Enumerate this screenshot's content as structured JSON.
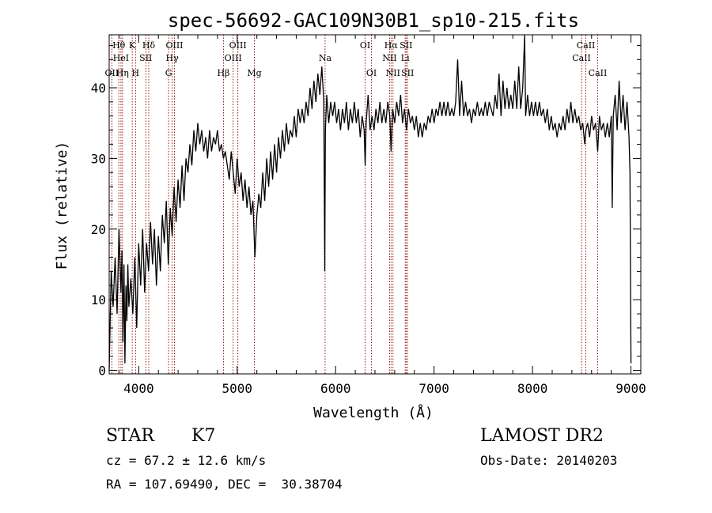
{
  "chart_data": {
    "type": "line",
    "title": "spec-56692-GAC109N30B1_sp10-215.fits",
    "xlabel": "Wavelength (Å)",
    "ylabel": "Flux (relative)",
    "xlim": [
      3700,
      9100
    ],
    "ylim": [
      -0.5,
      47.5
    ],
    "x_ticks": [
      4000,
      5000,
      6000,
      7000,
      8000,
      9000
    ],
    "y_ticks": [
      0,
      10,
      20,
      30,
      40
    ],
    "x_tick_labels": [
      "4000",
      "5000",
      "6000",
      "7000",
      "8000",
      "9000"
    ],
    "y_tick_labels": [
      "0",
      "10",
      "20",
      "30",
      "40"
    ],
    "grid": false,
    "series": [
      {
        "color": "#000000",
        "points": [
          [
            3700,
            0
          ],
          [
            3720,
            14
          ],
          [
            3740,
            9
          ],
          [
            3760,
            16
          ],
          [
            3780,
            8
          ],
          [
            3800,
            20
          ],
          [
            3820,
            11
          ],
          [
            3830,
            17
          ],
          [
            3840,
            4
          ],
          [
            3850,
            15
          ],
          [
            3860,
            1
          ],
          [
            3870,
            12
          ],
          [
            3880,
            7
          ],
          [
            3890,
            15
          ],
          [
            3900,
            9
          ],
          [
            3920,
            13
          ],
          [
            3940,
            8
          ],
          [
            3960,
            16
          ],
          [
            3980,
            6
          ],
          [
            4000,
            18
          ],
          [
            4020,
            12
          ],
          [
            4040,
            20
          ],
          [
            4060,
            11
          ],
          [
            4080,
            18
          ],
          [
            4100,
            14
          ],
          [
            4120,
            21
          ],
          [
            4140,
            15
          ],
          [
            4160,
            20
          ],
          [
            4180,
            12
          ],
          [
            4200,
            19
          ],
          [
            4220,
            14
          ],
          [
            4240,
            22
          ],
          [
            4260,
            18
          ],
          [
            4280,
            24
          ],
          [
            4300,
            15
          ],
          [
            4320,
            23
          ],
          [
            4340,
            19
          ],
          [
            4360,
            26
          ],
          [
            4380,
            21
          ],
          [
            4400,
            27
          ],
          [
            4420,
            23
          ],
          [
            4440,
            29
          ],
          [
            4460,
            24
          ],
          [
            4480,
            30
          ],
          [
            4500,
            28
          ],
          [
            4520,
            32
          ],
          [
            4540,
            29
          ],
          [
            4560,
            34
          ],
          [
            4580,
            31
          ],
          [
            4600,
            35
          ],
          [
            4620,
            32
          ],
          [
            4640,
            34
          ],
          [
            4660,
            31
          ],
          [
            4680,
            33
          ],
          [
            4700,
            30
          ],
          [
            4720,
            34
          ],
          [
            4740,
            31
          ],
          [
            4760,
            33
          ],
          [
            4780,
            32
          ],
          [
            4800,
            34
          ],
          [
            4820,
            31
          ],
          [
            4840,
            32
          ],
          [
            4860,
            30
          ],
          [
            4880,
            31
          ],
          [
            4900,
            29
          ],
          [
            4920,
            27
          ],
          [
            4940,
            31
          ],
          [
            4960,
            28
          ],
          [
            4980,
            25
          ],
          [
            5000,
            30
          ],
          [
            5020,
            26
          ],
          [
            5040,
            28
          ],
          [
            5060,
            24
          ],
          [
            5080,
            27
          ],
          [
            5100,
            23
          ],
          [
            5120,
            26
          ],
          [
            5140,
            22
          ],
          [
            5160,
            24
          ],
          [
            5180,
            16
          ],
          [
            5200,
            22
          ],
          [
            5220,
            25
          ],
          [
            5240,
            23
          ],
          [
            5260,
            28
          ],
          [
            5280,
            24
          ],
          [
            5300,
            30
          ],
          [
            5320,
            26
          ],
          [
            5340,
            31
          ],
          [
            5360,
            27
          ],
          [
            5380,
            32
          ],
          [
            5400,
            28
          ],
          [
            5420,
            33
          ],
          [
            5440,
            30
          ],
          [
            5460,
            34
          ],
          [
            5480,
            31
          ],
          [
            5500,
            35
          ],
          [
            5520,
            32
          ],
          [
            5540,
            34
          ],
          [
            5560,
            33
          ],
          [
            5580,
            36
          ],
          [
            5600,
            33
          ],
          [
            5620,
            37
          ],
          [
            5640,
            35
          ],
          [
            5660,
            37
          ],
          [
            5680,
            35
          ],
          [
            5700,
            38
          ],
          [
            5720,
            36
          ],
          [
            5740,
            40
          ],
          [
            5760,
            37
          ],
          [
            5780,
            41
          ],
          [
            5800,
            38
          ],
          [
            5820,
            42
          ],
          [
            5840,
            39
          ],
          [
            5860,
            43
          ],
          [
            5880,
            38
          ],
          [
            5890,
            14
          ],
          [
            5896,
            34
          ],
          [
            5910,
            39
          ],
          [
            5930,
            35
          ],
          [
            5950,
            38
          ],
          [
            5970,
            36
          ],
          [
            5990,
            38
          ],
          [
            6010,
            35
          ],
          [
            6030,
            37
          ],
          [
            6050,
            34
          ],
          [
            6070,
            37
          ],
          [
            6090,
            35
          ],
          [
            6110,
            38
          ],
          [
            6130,
            34
          ],
          [
            6150,
            37
          ],
          [
            6170,
            35
          ],
          [
            6190,
            38
          ],
          [
            6210,
            35
          ],
          [
            6230,
            37
          ],
          [
            6250,
            33
          ],
          [
            6270,
            36
          ],
          [
            6290,
            34
          ],
          [
            6300,
            29
          ],
          [
            6310,
            35
          ],
          [
            6330,
            39
          ],
          [
            6350,
            34
          ],
          [
            6370,
            36
          ],
          [
            6390,
            34
          ],
          [
            6410,
            37
          ],
          [
            6430,
            35
          ],
          [
            6450,
            38
          ],
          [
            6470,
            35
          ],
          [
            6490,
            37
          ],
          [
            6510,
            35
          ],
          [
            6530,
            38
          ],
          [
            6550,
            36
          ],
          [
            6563,
            31
          ],
          [
            6580,
            37
          ],
          [
            6600,
            35
          ],
          [
            6620,
            38
          ],
          [
            6640,
            36
          ],
          [
            6660,
            39
          ],
          [
            6680,
            35
          ],
          [
            6700,
            37
          ],
          [
            6720,
            34
          ],
          [
            6740,
            37
          ],
          [
            6760,
            35
          ],
          [
            6780,
            36
          ],
          [
            6800,
            34
          ],
          [
            6820,
            36
          ],
          [
            6840,
            33
          ],
          [
            6860,
            35
          ],
          [
            6880,
            33
          ],
          [
            6900,
            35
          ],
          [
            6920,
            34
          ],
          [
            6940,
            36
          ],
          [
            6960,
            35
          ],
          [
            6980,
            37
          ],
          [
            7000,
            35
          ],
          [
            7020,
            37
          ],
          [
            7040,
            36
          ],
          [
            7060,
            38
          ],
          [
            7080,
            36
          ],
          [
            7100,
            38
          ],
          [
            7120,
            36
          ],
          [
            7140,
            38
          ],
          [
            7160,
            36
          ],
          [
            7180,
            37
          ],
          [
            7200,
            36
          ],
          [
            7220,
            38
          ],
          [
            7240,
            44
          ],
          [
            7260,
            36
          ],
          [
            7280,
            41
          ],
          [
            7300,
            36
          ],
          [
            7320,
            38
          ],
          [
            7340,
            36
          ],
          [
            7360,
            37
          ],
          [
            7380,
            35
          ],
          [
            7400,
            37
          ],
          [
            7420,
            36
          ],
          [
            7440,
            38
          ],
          [
            7460,
            36
          ],
          [
            7480,
            37
          ],
          [
            7500,
            36
          ],
          [
            7520,
            38
          ],
          [
            7540,
            36
          ],
          [
            7560,
            38
          ],
          [
            7580,
            37
          ],
          [
            7600,
            36
          ],
          [
            7620,
            39
          ],
          [
            7640,
            37
          ],
          [
            7660,
            42
          ],
          [
            7680,
            36
          ],
          [
            7700,
            41
          ],
          [
            7720,
            37
          ],
          [
            7740,
            40
          ],
          [
            7760,
            37
          ],
          [
            7780,
            39
          ],
          [
            7800,
            37
          ],
          [
            7820,
            41
          ],
          [
            7840,
            37
          ],
          [
            7860,
            43
          ],
          [
            7880,
            37
          ],
          [
            7900,
            40
          ],
          [
            7920,
            48
          ],
          [
            7930,
            36
          ],
          [
            7950,
            39
          ],
          [
            7970,
            36
          ],
          [
            7990,
            38
          ],
          [
            8010,
            36
          ],
          [
            8030,
            38
          ],
          [
            8050,
            36
          ],
          [
            8070,
            38
          ],
          [
            8090,
            36
          ],
          [
            8110,
            37
          ],
          [
            8130,
            35
          ],
          [
            8150,
            37
          ],
          [
            8170,
            34
          ],
          [
            8190,
            36
          ],
          [
            8210,
            34
          ],
          [
            8230,
            35
          ],
          [
            8250,
            33
          ],
          [
            8270,
            35
          ],
          [
            8290,
            34
          ],
          [
            8310,
            36
          ],
          [
            8330,
            34
          ],
          [
            8350,
            37
          ],
          [
            8370,
            35
          ],
          [
            8390,
            38
          ],
          [
            8410,
            35
          ],
          [
            8430,
            37
          ],
          [
            8450,
            35
          ],
          [
            8470,
            36
          ],
          [
            8490,
            34
          ],
          [
            8510,
            35
          ],
          [
            8530,
            32
          ],
          [
            8542,
            34
          ],
          [
            8560,
            35
          ],
          [
            8580,
            33
          ],
          [
            8600,
            36
          ],
          [
            8620,
            34
          ],
          [
            8640,
            35
          ],
          [
            8662,
            31
          ],
          [
            8680,
            36
          ],
          [
            8700,
            34
          ],
          [
            8720,
            35
          ],
          [
            8740,
            33
          ],
          [
            8760,
            35
          ],
          [
            8780,
            33
          ],
          [
            8800,
            36
          ],
          [
            8810,
            23
          ],
          [
            8820,
            36
          ],
          [
            8840,
            39
          ],
          [
            8860,
            34
          ],
          [
            8880,
            41
          ],
          [
            8900,
            35
          ],
          [
            8920,
            39
          ],
          [
            8940,
            34
          ],
          [
            8960,
            38
          ],
          [
            8980,
            33
          ],
          [
            8990,
            28
          ],
          [
            9000,
            1
          ]
        ]
      }
    ],
    "line_markers": {
      "color": "#8b0000",
      "lines": [
        {
          "wavelength": 3727,
          "label": "OII",
          "row": "bottom"
        },
        {
          "wavelength": 3798,
          "label": "Hθ",
          "row": "top"
        },
        {
          "wavelength": 3820,
          "label": "HeI",
          "row": "middle"
        },
        {
          "wavelength": 3835,
          "label": "Hη",
          "row": "bottom"
        },
        {
          "wavelength": 3934,
          "label": "K",
          "row": "top"
        },
        {
          "wavelength": 3968,
          "label": "H",
          "row": "bottom"
        },
        {
          "wavelength": 4072,
          "label": "SII",
          "row": "middle"
        },
        {
          "wavelength": 4102,
          "label": "Hδ",
          "row": "top"
        },
        {
          "wavelength": 4304,
          "label": "G",
          "row": "bottom"
        },
        {
          "wavelength": 4340,
          "label": "Hγ",
          "row": "middle"
        },
        {
          "wavelength": 4363,
          "label": "OIII",
          "row": "top"
        },
        {
          "wavelength": 4861,
          "label": "Hβ",
          "row": "bottom"
        },
        {
          "wavelength": 4959,
          "label": "OIII",
          "row": "middle"
        },
        {
          "wavelength": 5007,
          "label": "OIII",
          "row": "top"
        },
        {
          "wavelength": 5175,
          "label": "Mg",
          "row": "bottom"
        },
        {
          "wavelength": 5893,
          "label": "Na",
          "row": "middle"
        },
        {
          "wavelength": 6300,
          "label": "OI",
          "row": "top"
        },
        {
          "wavelength": 6364,
          "label": "OI",
          "row": "bottom"
        },
        {
          "wavelength": 6548,
          "label": "NII",
          "row": "middle"
        },
        {
          "wavelength": 6563,
          "label": "Hα",
          "row": "top"
        },
        {
          "wavelength": 6583,
          "label": "NII",
          "row": "bottom"
        },
        {
          "wavelength": 6707,
          "label": "Li",
          "row": "middle"
        },
        {
          "wavelength": 6716,
          "label": "SII",
          "row": "top"
        },
        {
          "wavelength": 6731,
          "label": "SII",
          "row": "bottom"
        },
        {
          "wavelength": 8498,
          "label": "CaII",
          "row": "middle"
        },
        {
          "wavelength": 8542,
          "label": "CaII",
          "row": "top"
        },
        {
          "wavelength": 8662,
          "label": "CaII",
          "row": "bottom"
        }
      ]
    }
  },
  "info": {
    "class": "STAR",
    "subclass": "K7",
    "survey": "LAMOST DR2",
    "redshift": "cz = 67.2 ± 12.6 km/s",
    "obs_date": "Obs-Date: 20140203",
    "coords": "RA = 107.69490, DEC =  30.38704"
  }
}
